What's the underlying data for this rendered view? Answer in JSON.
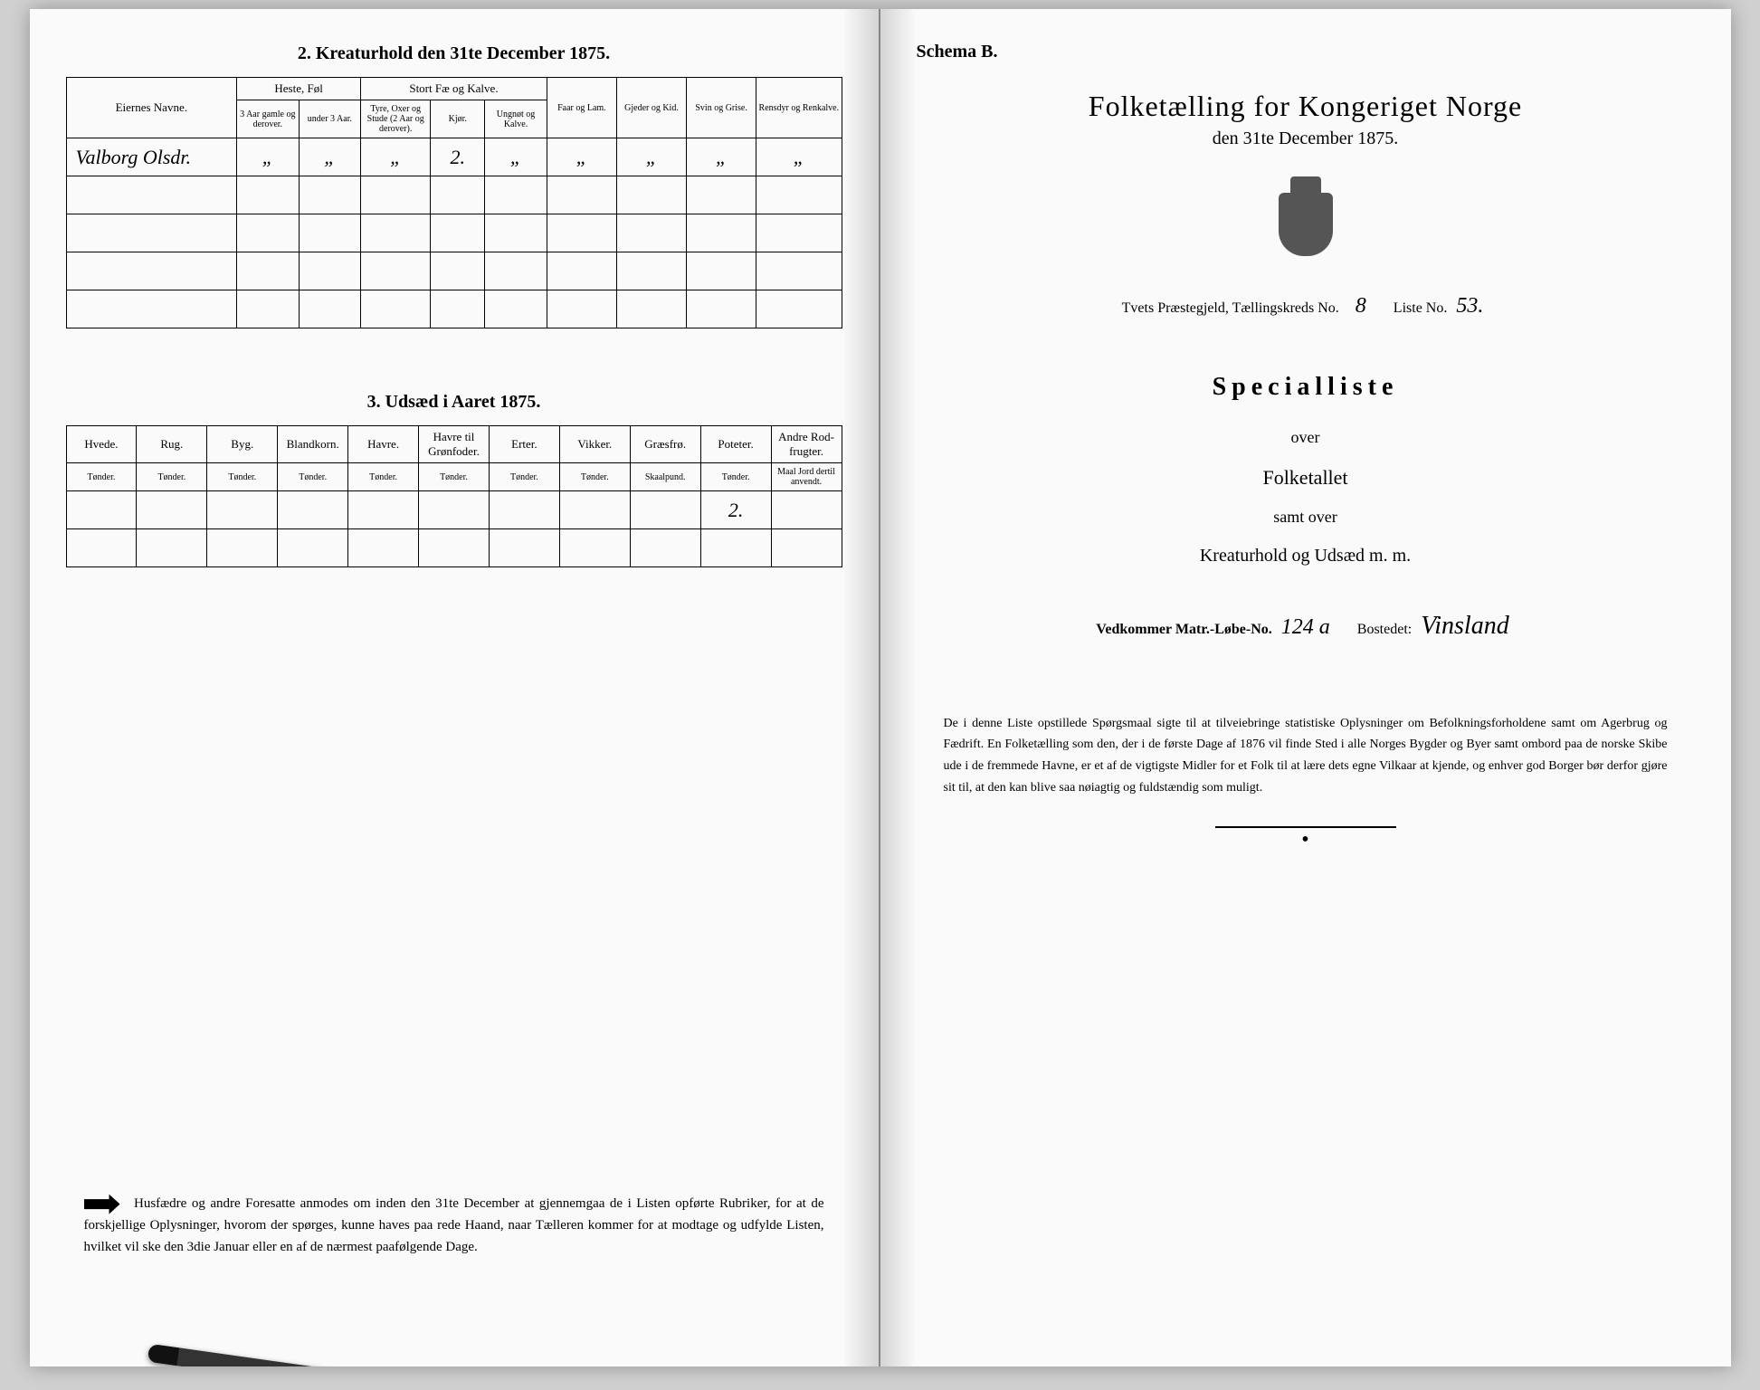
{
  "left": {
    "section2_title": "2.  Kreaturhold den 31te December 1875.",
    "table2": {
      "col_owner": "Eiernes Navne.",
      "grp_horses": "Heste, Føl",
      "grp_cattle": "Stort Fæ og Kalve.",
      "col_sheep": "Faar og Lam.",
      "col_goats": "Gjeder og Kid.",
      "col_pigs": "Svin og Grise.",
      "col_reindeer": "Rensdyr og Renkalve.",
      "sub_h1": "3 Aar gamle og derover.",
      "sub_h2": "under 3 Aar.",
      "sub_c1": "Tyre, Oxer og Stude (2 Aar og derover).",
      "sub_c2": "Kjør.",
      "sub_c3": "Ungnøt og Kalve.",
      "row1_owner": "Valborg Olsdr.",
      "row1_vals": [
        "„",
        "„",
        "„",
        "2.",
        "„",
        "„",
        "„",
        "„",
        "„"
      ]
    },
    "section3_title": "3.  Udsæd i Aaret 1875.",
    "table3": {
      "cols": [
        {
          "h": "Hvede.",
          "s": "Tønder."
        },
        {
          "h": "Rug.",
          "s": "Tønder."
        },
        {
          "h": "Byg.",
          "s": "Tønder."
        },
        {
          "h": "Blandkorn.",
          "s": "Tønder."
        },
        {
          "h": "Havre.",
          "s": "Tønder."
        },
        {
          "h": "Havre til Grønfoder.",
          "s": "Tønder."
        },
        {
          "h": "Erter.",
          "s": "Tønder."
        },
        {
          "h": "Vikker.",
          "s": "Tønder."
        },
        {
          "h": "Græsfrø.",
          "s": "Skaalpund."
        },
        {
          "h": "Poteter.",
          "s": "Tønder."
        },
        {
          "h": "Andre Rod-frugter.",
          "s": "Maal Jord dertil anvendt."
        }
      ],
      "row_vals": [
        "",
        "",
        "",
        "",
        "",
        "",
        "",
        "",
        "",
        "2.",
        ""
      ]
    },
    "notice": "Husfædre og andre Foresatte anmodes om inden den 31te December at gjennemgaa de i Listen opførte Rubriker, for at de forskjellige Oplysninger, hvorom der spørges, kunne haves paa rede Haand, naar Tælleren kommer for at modtage og udfylde Listen, hvilket vil ske den 3die Januar eller en af de nærmest paafølgende Dage."
  },
  "right": {
    "schema": "Schema B.",
    "main_title": "Folketælling for Kongeriget Norge",
    "sub_title": "den 31te December 1875.",
    "parish_label": "Tvets Præstegjeld, Tællingskreds No.",
    "kreds_no": "8",
    "liste_label": "Liste No.",
    "liste_no": "53.",
    "special": "Specialliste",
    "over": "over",
    "folketallet": "Folketallet",
    "samt": "samt over",
    "kreatur": "Kreaturhold og Udsæd m. m.",
    "matr_label": "Vedkommer Matr.-Løbe-No.",
    "matr_no": "124 a",
    "bosted_label": "Bostedet:",
    "bosted": "Vinsland",
    "para": "De i denne Liste opstillede Spørgsmaal sigte til at tilveiebringe statistiske Oplysninger om Befolkningsforholdene samt om Agerbrug og Fædrift.  En Folketælling som den, der i de første Dage af 1876 vil finde Sted i alle Norges Bygder og Byer samt ombord paa de norske Skibe ude i de fremmede Havne, er et af de vigtigste Midler for et Folk til at lære dets egne Vilkaar at kjende, og enhver god Borger bør derfor gjøre sit til, at den kan blive saa nøiagtig og fuldstændig som muligt."
  },
  "colors": {
    "ink": "#000000",
    "paper": "#fafafa"
  }
}
